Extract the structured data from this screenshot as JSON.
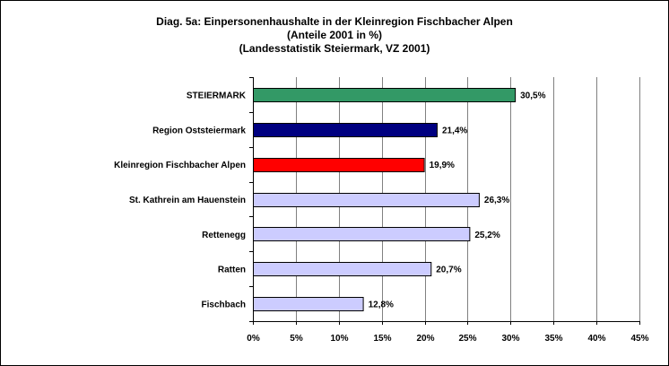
{
  "chart_data": {
    "type": "bar",
    "orientation": "horizontal",
    "title_lines": [
      "Diag. 5a: Einpersonenhaushalte  in der Kleinregion Fischbacher Alpen",
      "(Anteile 2001 in %)",
      "(Landesstatistik  Steiermark,  VZ 2001)"
    ],
    "categories": [
      "STEIERMARK",
      "Region Oststeiermark",
      "Kleinregion Fischbacher Alpen",
      "St. Kathrein am Hauenstein",
      "Rettenegg",
      "Ratten",
      "Fischbach"
    ],
    "values": [
      30.5,
      21.4,
      19.9,
      26.3,
      25.2,
      20.7,
      12.8
    ],
    "value_labels": [
      "30,5%",
      "21,4%",
      "19,9%",
      "26,3%",
      "25,2%",
      "20,7%",
      "12,8%"
    ],
    "bar_colors": [
      "#339966",
      "#000080",
      "#ff0000",
      "#ccccff",
      "#ccccff",
      "#ccccff",
      "#ccccff"
    ],
    "xlim": [
      0,
      45
    ],
    "xticks": [
      0,
      5,
      10,
      15,
      20,
      25,
      30,
      35,
      40,
      45
    ],
    "xtick_labels": [
      "0%",
      "5%",
      "10%",
      "15%",
      "20%",
      "25%",
      "30%",
      "35%",
      "40%",
      "45%"
    ],
    "xlabel": "",
    "ylabel": "",
    "grid": "vertical",
    "legend": "none"
  }
}
